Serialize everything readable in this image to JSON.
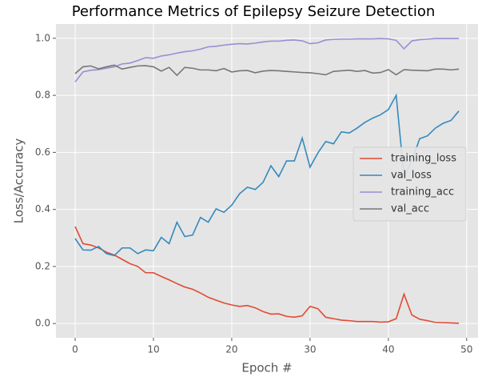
{
  "chart_data": {
    "type": "line",
    "title": "Performance Metrics of Epilepsy Seizure Detection",
    "xlabel": "Epoch #",
    "ylabel": "Loss/Accuracy",
    "x": [
      0,
      1,
      2,
      3,
      4,
      5,
      6,
      7,
      8,
      9,
      10,
      11,
      12,
      13,
      14,
      15,
      16,
      17,
      18,
      19,
      20,
      21,
      22,
      23,
      24,
      25,
      26,
      27,
      28,
      29,
      30,
      31,
      32,
      33,
      34,
      35,
      36,
      37,
      38,
      39,
      40,
      41,
      42,
      43,
      44,
      45,
      46,
      47,
      48,
      49
    ],
    "series": [
      {
        "name": "training_loss",
        "color": "#E24A33",
        "values": [
          0.34,
          0.28,
          0.275,
          0.265,
          0.25,
          0.24,
          0.225,
          0.21,
          0.2,
          0.178,
          0.178,
          0.165,
          0.153,
          0.14,
          0.128,
          0.12,
          0.107,
          0.092,
          0.082,
          0.072,
          0.065,
          0.06,
          0.063,
          0.055,
          0.042,
          0.033,
          0.034,
          0.025,
          0.022,
          0.027,
          0.06,
          0.052,
          0.022,
          0.017,
          0.012,
          0.01,
          0.007,
          0.007,
          0.007,
          0.005,
          0.006,
          0.017,
          0.103,
          0.03,
          0.015,
          0.01,
          0.004,
          0.003,
          0.002,
          0.001
        ]
      },
      {
        "name": "val_loss",
        "color": "#348ABD",
        "values": [
          0.298,
          0.258,
          0.257,
          0.27,
          0.245,
          0.238,
          0.265,
          0.265,
          0.245,
          0.258,
          0.255,
          0.302,
          0.28,
          0.355,
          0.305,
          0.31,
          0.372,
          0.355,
          0.402,
          0.39,
          0.415,
          0.455,
          0.478,
          0.47,
          0.495,
          0.553,
          0.515,
          0.57,
          0.57,
          0.65,
          0.548,
          0.598,
          0.638,
          0.63,
          0.672,
          0.668,
          0.685,
          0.705,
          0.72,
          0.732,
          0.75,
          0.8,
          0.515,
          0.57,
          0.648,
          0.658,
          0.685,
          0.702,
          0.712,
          0.745
        ]
      },
      {
        "name": "training_acc",
        "color": "#988ED5",
        "values": [
          0.847,
          0.882,
          0.888,
          0.89,
          0.895,
          0.9,
          0.91,
          0.913,
          0.922,
          0.932,
          0.93,
          0.938,
          0.942,
          0.948,
          0.953,
          0.956,
          0.962,
          0.97,
          0.972,
          0.976,
          0.979,
          0.981,
          0.98,
          0.983,
          0.987,
          0.99,
          0.99,
          0.993,
          0.994,
          0.991,
          0.981,
          0.984,
          0.994,
          0.996,
          0.997,
          0.997,
          0.998,
          0.998,
          0.998,
          0.999,
          0.998,
          0.993,
          0.963,
          0.991,
          0.995,
          0.997,
          0.999,
          0.999,
          0.999,
          0.999
        ]
      },
      {
        "name": "val_acc",
        "color": "#777777",
        "values": [
          0.876,
          0.9,
          0.903,
          0.893,
          0.9,
          0.906,
          0.892,
          0.898,
          0.903,
          0.904,
          0.9,
          0.885,
          0.898,
          0.87,
          0.898,
          0.895,
          0.889,
          0.889,
          0.886,
          0.894,
          0.882,
          0.886,
          0.887,
          0.879,
          0.885,
          0.887,
          0.886,
          0.884,
          0.882,
          0.88,
          0.879,
          0.876,
          0.872,
          0.884,
          0.886,
          0.888,
          0.884,
          0.887,
          0.878,
          0.88,
          0.89,
          0.872,
          0.89,
          0.888,
          0.887,
          0.886,
          0.892,
          0.892,
          0.889,
          0.892
        ]
      }
    ],
    "xlim": [
      -2.45,
      51.45
    ],
    "xticks": [
      0,
      10,
      20,
      30,
      40,
      50
    ],
    "ylim": [
      -0.05,
      1.05
    ],
    "yticks": [
      {
        "value": 0,
        "label": "0.0"
      },
      0.2,
      0.4,
      0.6,
      0.8,
      {
        "value": 1,
        "label": "1.0"
      }
    ],
    "grid": true,
    "legend": "center right"
  }
}
